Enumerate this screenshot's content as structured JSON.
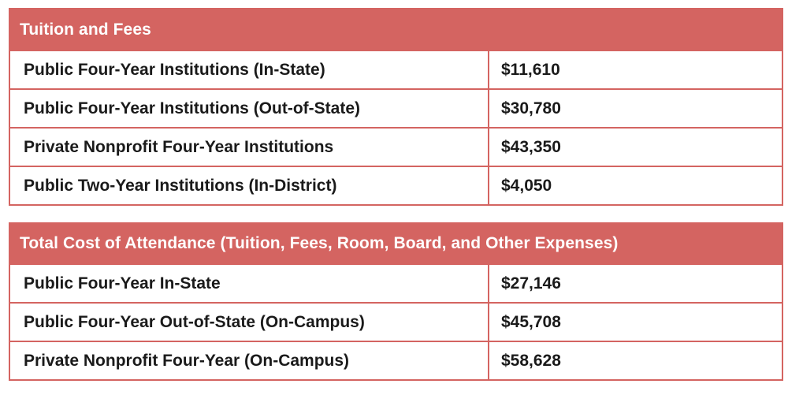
{
  "tuition_table": {
    "header": "Tuition and Fees",
    "rows": [
      {
        "label": "Public Four-Year Institutions (In-State)",
        "value": "$11,610"
      },
      {
        "label": "Public Four-Year Institutions (Out-of-State)",
        "value": "$30,780"
      },
      {
        "label": "Private Nonprofit Four-Year Institutions",
        "value": "$43,350"
      },
      {
        "label": "Public Two-Year Institutions (In-District)",
        "value": "$4,050"
      }
    ]
  },
  "attendance_table": {
    "header": "Total Cost of Attendance (Tuition, Fees, Room, Board, and Other Expenses)",
    "rows": [
      {
        "label": "Public Four-Year In-State",
        "value": "$27,146"
      },
      {
        "label": "Public Four-Year Out-of-State (On-Campus)",
        "value": "$45,708"
      },
      {
        "label": "Private Nonprofit Four-Year (On-Campus)",
        "value": "$58,628"
      }
    ]
  },
  "colors": {
    "header_background": "#d46461",
    "header_text": "#ffffff",
    "border": "#d46461",
    "body_text": "#1a1a1a"
  }
}
